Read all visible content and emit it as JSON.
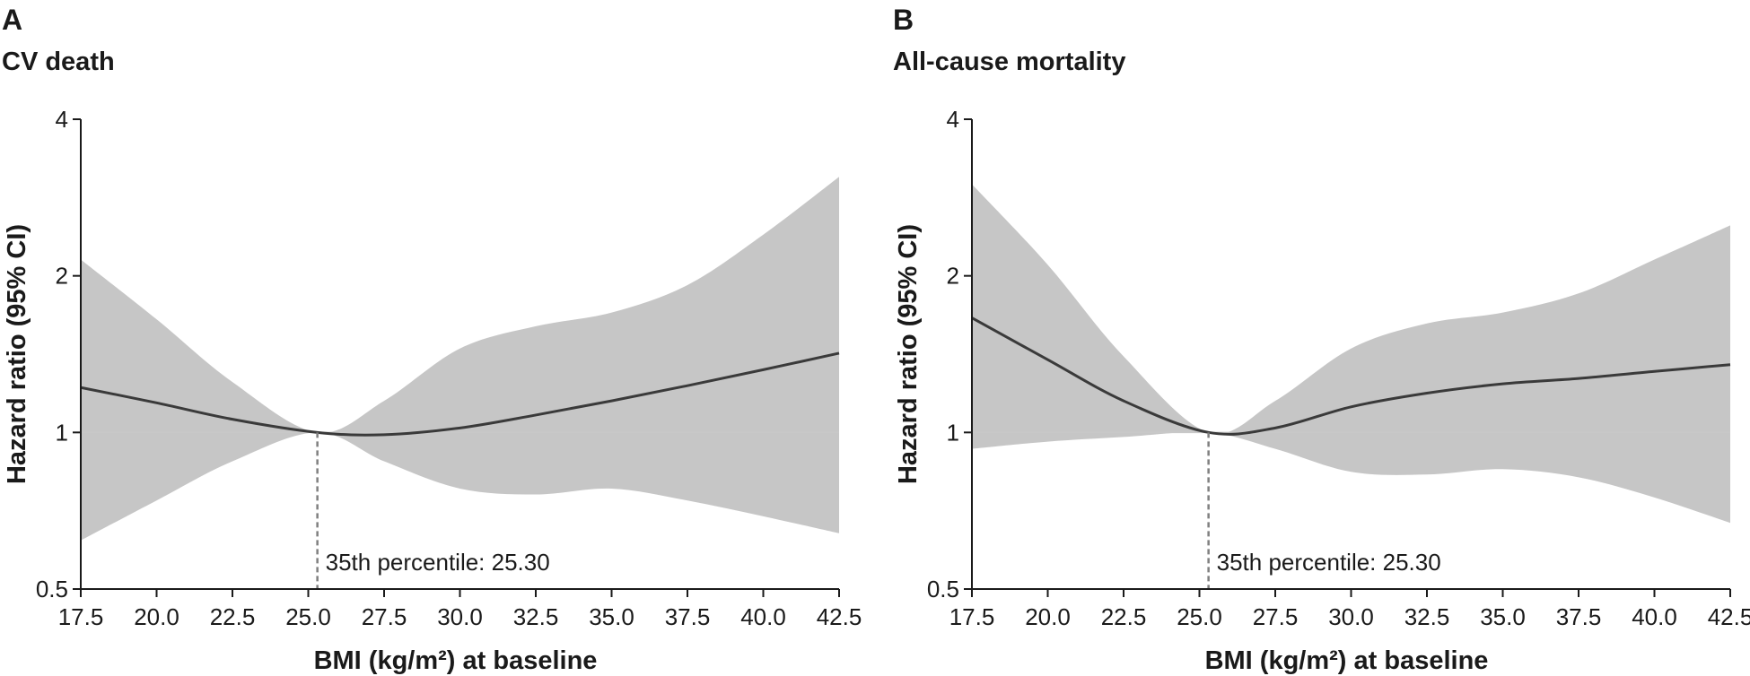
{
  "colors": {
    "band": "#c6c6c6",
    "line": "#3a3a3a",
    "reference": "#c8c8c8",
    "cutoff": "#808080"
  },
  "chart_data": [
    {
      "type": "line",
      "panel_label": "A",
      "title": "CV death",
      "xlabel": "BMI (kg/m²) at baseline",
      "ylabel": "Hazard ratio (95% CI)",
      "y_scale": "log",
      "xlim": [
        17.5,
        42.5
      ],
      "ylim": [
        0.5,
        4
      ],
      "x_ticks": [
        17.5,
        20.0,
        22.5,
        25.0,
        27.5,
        30.0,
        32.5,
        35.0,
        37.5,
        40.0,
        42.5
      ],
      "x_tick_labels": [
        "17.5",
        "20.0",
        "22.5",
        "25.0",
        "27.5",
        "30.0",
        "32.5",
        "35.0",
        "37.5",
        "40.0",
        "42.5"
      ],
      "y_ticks": [
        0.5,
        1,
        2,
        4
      ],
      "y_tick_labels": [
        "0.5",
        "1",
        "2",
        "4"
      ],
      "reference_line_y": 1,
      "cutoff": {
        "x": 25.3,
        "label": "35th percentile: 25.30"
      },
      "x": [
        17.5,
        20.0,
        22.5,
        25.3,
        27.5,
        30.0,
        32.5,
        35.0,
        37.5,
        40.0,
        42.5
      ],
      "hr": [
        1.22,
        1.14,
        1.06,
        1.0,
        0.99,
        1.02,
        1.08,
        1.15,
        1.23,
        1.32,
        1.42
      ],
      "lower": [
        0.62,
        0.74,
        0.88,
        1.0,
        0.88,
        0.78,
        0.76,
        0.78,
        0.74,
        0.69,
        0.64
      ],
      "upper": [
        2.15,
        1.65,
        1.25,
        1.0,
        1.15,
        1.45,
        1.6,
        1.7,
        1.92,
        2.4,
        3.1
      ]
    },
    {
      "type": "line",
      "panel_label": "B",
      "title": "All-cause mortality",
      "xlabel": "BMI (kg/m²) at baseline",
      "ylabel": "Hazard ratio (95% CI)",
      "y_scale": "log",
      "xlim": [
        17.5,
        42.5
      ],
      "ylim": [
        0.5,
        4
      ],
      "x_ticks": [
        17.5,
        20.0,
        22.5,
        25.0,
        27.5,
        30.0,
        32.5,
        35.0,
        37.5,
        40.0,
        42.5
      ],
      "x_tick_labels": [
        "17.5",
        "20.0",
        "22.5",
        "25.0",
        "27.5",
        "30.0",
        "32.5",
        "35.0",
        "37.5",
        "40.0",
        "42.5"
      ],
      "y_ticks": [
        0.5,
        1,
        2,
        4
      ],
      "y_tick_labels": [
        "0.5",
        "1",
        "2",
        "4"
      ],
      "reference_line_y": 1,
      "cutoff": {
        "x": 25.3,
        "label": "35th percentile: 25.30"
      },
      "x": [
        17.5,
        20.0,
        22.5,
        25.3,
        27.5,
        30.0,
        32.5,
        35.0,
        37.5,
        40.0,
        42.5
      ],
      "hr": [
        1.66,
        1.38,
        1.15,
        1.0,
        1.02,
        1.12,
        1.19,
        1.24,
        1.27,
        1.31,
        1.35
      ],
      "lower": [
        0.93,
        0.96,
        0.98,
        1.0,
        0.93,
        0.84,
        0.83,
        0.85,
        0.82,
        0.75,
        0.67
      ],
      "upper": [
        3.0,
        2.1,
        1.4,
        1.0,
        1.15,
        1.45,
        1.62,
        1.7,
        1.85,
        2.15,
        2.5
      ]
    }
  ]
}
